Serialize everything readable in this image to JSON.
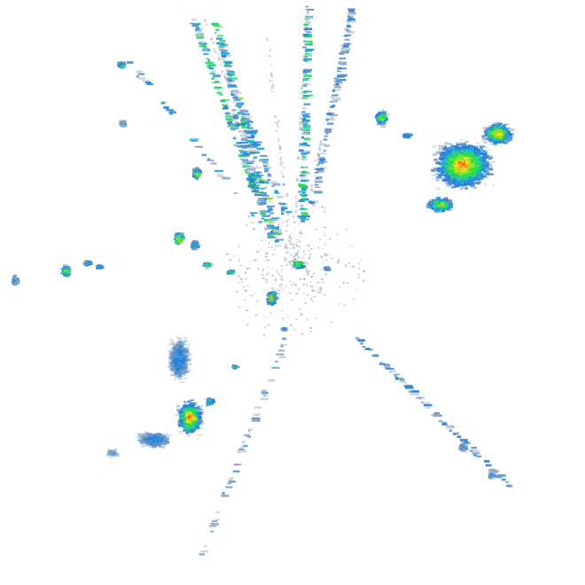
{
  "map": {
    "kind": "weather-radar-reflectivity",
    "background": "#ffffff",
    "color_scale": [
      "#c8d2dc",
      "#8ea9c6",
      "#5a92cf",
      "#2a7fd6",
      "#1e9fe0",
      "#2fd08a",
      "#22e04a",
      "#8ce02a",
      "#f0e020",
      "#f5a018",
      "#f04818"
    ],
    "clutter_color": "#9aa6b2"
  }
}
